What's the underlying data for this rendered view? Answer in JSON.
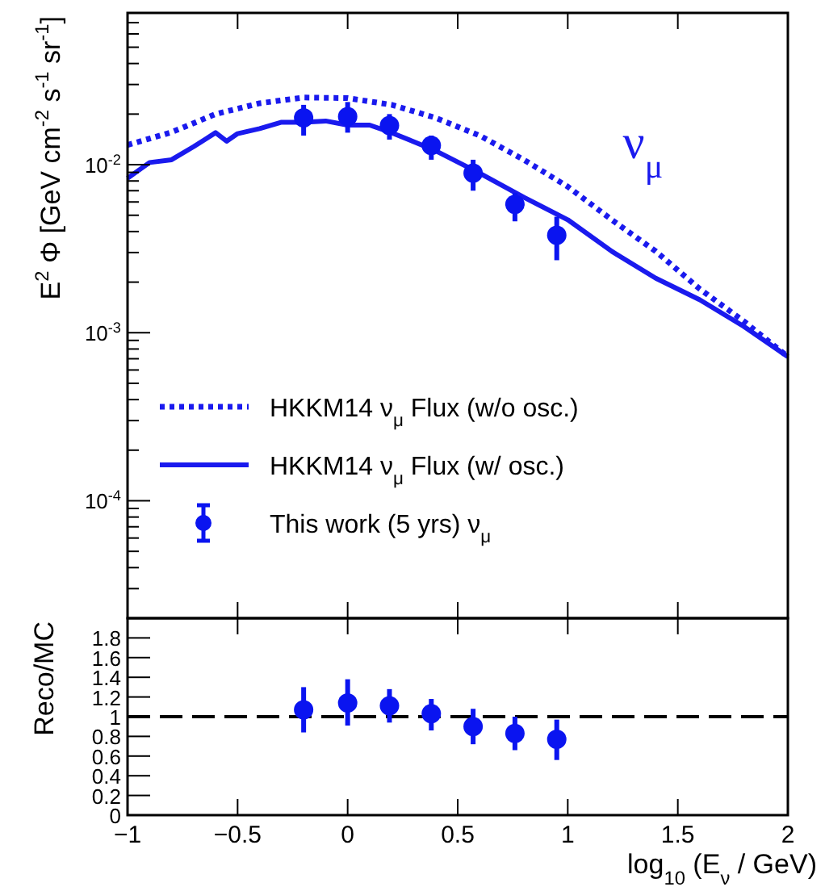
{
  "chart_data": [
    {
      "type": "line",
      "ylabel": "E$^{2}$ Φ [GeV cm$^{-2}$ s$^{-1}$ sr$^{-1}$]",
      "log": "y",
      "xlim": [
        -1,
        2
      ],
      "ylim": [
        2e-05,
        0.08
      ],
      "xticks": [
        -1,
        -0.5,
        0,
        0.5,
        1,
        1.5,
        2
      ],
      "yticks": [
        {
          "value": 3e-05,
          "label": null
        },
        {
          "value": 4e-05,
          "label": null
        },
        {
          "value": 5e-05,
          "label": null
        },
        {
          "value": 6e-05,
          "label": null
        },
        {
          "value": 7e-05,
          "label": null
        },
        {
          "value": 8e-05,
          "label": null
        },
        {
          "value": 9e-05,
          "label": null
        },
        {
          "value": 0.0001,
          "label": "10$^{-4}$"
        },
        {
          "value": 0.0002,
          "label": null
        },
        {
          "value": 0.0003,
          "label": null
        },
        {
          "value": 0.0004,
          "label": null
        },
        {
          "value": 0.0005,
          "label": null
        },
        {
          "value": 0.0006,
          "label": null
        },
        {
          "value": 0.0007,
          "label": null
        },
        {
          "value": 0.0008,
          "label": null
        },
        {
          "value": 0.0009,
          "label": null
        },
        {
          "value": 0.001,
          "label": "10$^{-3}$"
        },
        {
          "value": 0.002,
          "label": null
        },
        {
          "value": 0.003,
          "label": null
        },
        {
          "value": 0.004,
          "label": null
        },
        {
          "value": 0.005,
          "label": null
        },
        {
          "value": 0.006,
          "label": null
        },
        {
          "value": 0.007,
          "label": null
        },
        {
          "value": 0.008,
          "label": null
        },
        {
          "value": 0.009,
          "label": null
        },
        {
          "value": 0.01,
          "label": "10$^{-2}$"
        },
        {
          "value": 0.02,
          "label": null
        },
        {
          "value": 0.03,
          "label": null
        },
        {
          "value": 0.04,
          "label": null
        },
        {
          "value": 0.05,
          "label": null
        },
        {
          "value": 0.06,
          "label": null
        },
        {
          "value": 0.07,
          "label": null
        }
      ],
      "tick_labels": "y",
      "grid": false,
      "legend": "bottom left",
      "annotations": [
        "ν$_{μ}$"
      ],
      "series": [
        {
          "name": "HKKM14 ν$_{μ}$ Flux (w/o osc.)",
          "line_style": "dotted",
          "color": "#1a1aee",
          "x": [
            -1,
            -0.8,
            -0.6,
            -0.4,
            -0.2,
            0,
            0.2,
            0.4,
            0.6,
            0.8,
            1,
            1.2,
            1.4,
            1.6,
            1.8,
            2
          ],
          "values": [
            0.0131,
            0.0156,
            0.02,
            0.0232,
            0.0251,
            0.0249,
            0.0227,
            0.019,
            0.0149,
            0.0107,
            0.0074,
            0.0047,
            0.00305,
            0.00182,
            0.00117,
            0.00072
          ]
        },
        {
          "name": "HKKM14 ν$_{μ}$ Flux (w/ osc.)",
          "line_style": "solid",
          "color": "#1a1aee",
          "x": [
            -1,
            -0.9,
            -0.8,
            -0.7,
            -0.6,
            -0.55,
            -0.5,
            -0.4,
            -0.3,
            -0.2,
            -0.1,
            0,
            0.1,
            0.2,
            0.4,
            0.6,
            0.8,
            1,
            1.2,
            1.4,
            1.6,
            1.8,
            2
          ],
          "values": [
            0.0083,
            0.0103,
            0.0107,
            0.0128,
            0.0155,
            0.0138,
            0.0153,
            0.0164,
            0.0179,
            0.0179,
            0.0182,
            0.0172,
            0.0172,
            0.0155,
            0.0121,
            0.0089,
            0.0064,
            0.0047,
            0.00305,
            0.00211,
            0.00157,
            0.00109,
            0.00072
          ]
        },
        {
          "name": "This work (5 yrs) ν$_{μ}$",
          "type": "scatter",
          "marker": "circle",
          "color": "#0a14f0",
          "x": [
            -0.2,
            0,
            0.19,
            0.38,
            0.57,
            0.76,
            0.95
          ],
          "values": [
            0.019,
            0.0193,
            0.0171,
            0.013,
            0.0089,
            0.0058,
            0.0038
          ],
          "errors": [
            [
              0.0149,
              0.0227
            ],
            [
              0.0155,
              0.0236
            ],
            [
              0.0141,
              0.02
            ],
            [
              0.0107,
              0.0149
            ],
            [
              0.007,
              0.0107
            ],
            [
              0.0046,
              0.0068
            ],
            [
              0.0027,
              0.0049
            ]
          ]
        }
      ]
    },
    {
      "type": "scatter",
      "ylabel": "Reco/MC",
      "xlabel": "log$_{10}$ (E$_{ν}$ / GeV)",
      "xlim": [
        -1,
        2
      ],
      "ylim": [
        0,
        2
      ],
      "xticks": [
        -1,
        -0.5,
        0,
        0.5,
        1,
        1.5,
        2
      ],
      "yticks": [
        0,
        0.2,
        0.4,
        0.6,
        0.8,
        1,
        1.2,
        1.4,
        1.6,
        1.8
      ],
      "grid": false,
      "ref_lines": [
        {
          "axis": "y",
          "value": 1,
          "color": "#000000",
          "line_style": "dashed"
        }
      ],
      "series": [
        {
          "marker": "circle",
          "color": "#0a14f0",
          "x": [
            -0.2,
            0,
            0.19,
            0.38,
            0.57,
            0.76,
            0.95
          ],
          "values": [
            1.07,
            1.14,
            1.11,
            1.03,
            0.9,
            0.83,
            0.77
          ],
          "errors": [
            [
              0.84,
              1.3
            ],
            [
              0.91,
              1.38
            ],
            [
              0.94,
              1.28
            ],
            [
              0.86,
              1.18
            ],
            [
              0.72,
              1.08
            ],
            [
              0.66,
              1.0
            ],
            [
              0.56,
              0.97
            ]
          ]
        }
      ]
    }
  ]
}
